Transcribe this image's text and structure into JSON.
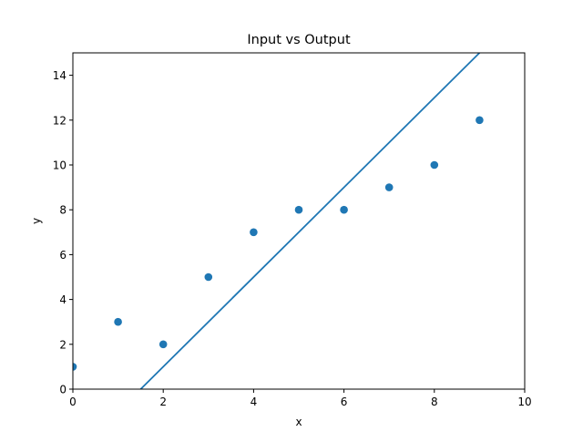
{
  "chart_data": {
    "type": "scatter",
    "title": "Input vs Output",
    "xlabel": "x",
    "ylabel": "y",
    "xlim": [
      0,
      10
    ],
    "ylim": [
      0,
      15
    ],
    "xticks": [
      0,
      2,
      4,
      6,
      8,
      10
    ],
    "yticks": [
      0,
      2,
      4,
      6,
      8,
      10,
      12,
      14
    ],
    "grid": false,
    "series": [
      {
        "type": "scatter",
        "x": [
          0,
          1,
          2,
          3,
          4,
          5,
          6,
          7,
          8,
          9
        ],
        "y": [
          1,
          3,
          2,
          5,
          7,
          8,
          8,
          9,
          10,
          12
        ],
        "color": "#1f77b4"
      },
      {
        "type": "line",
        "x": [
          1.5,
          9
        ],
        "y": [
          0,
          15
        ],
        "color": "#1f77b4"
      }
    ]
  }
}
